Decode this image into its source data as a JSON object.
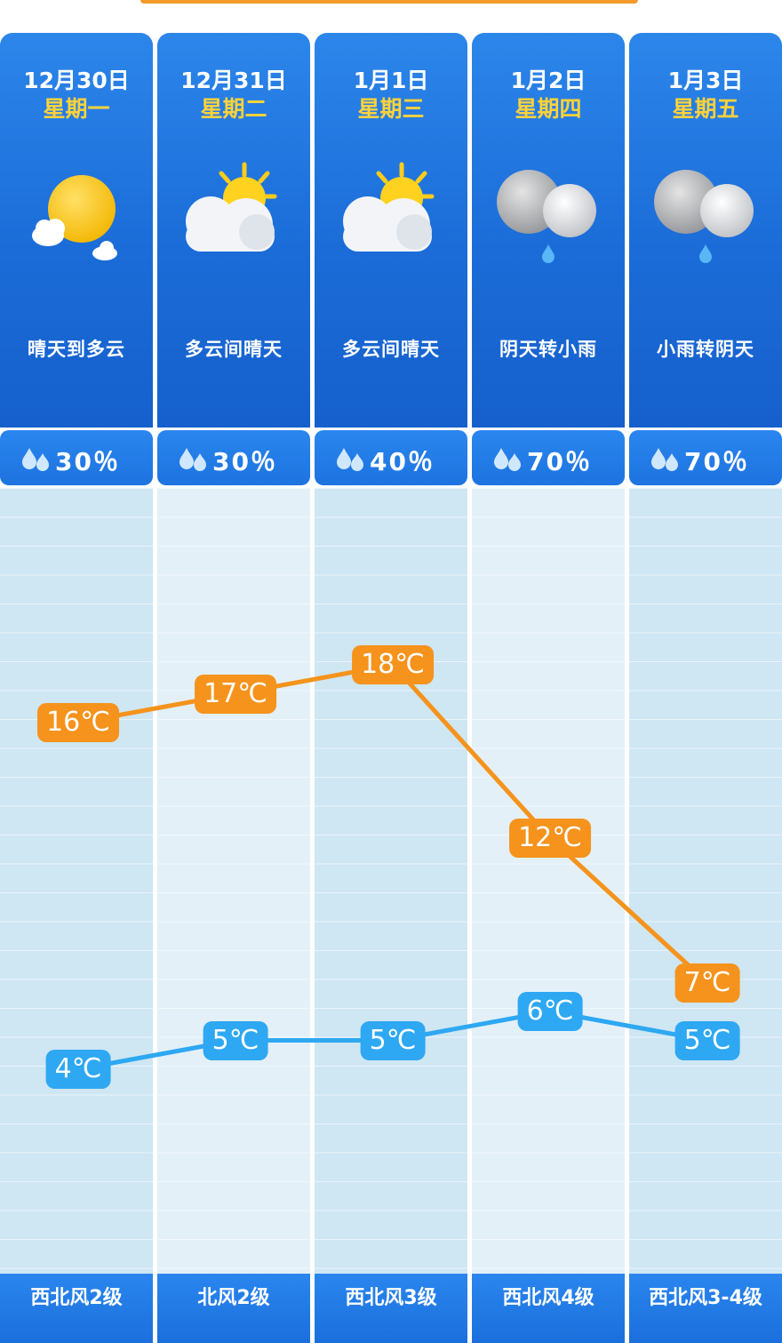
{
  "days": [
    {
      "date": "12月30日",
      "weekday": "星期一",
      "icon": "sun-cloud-icon",
      "desc": "晴天到多云",
      "rain": "30％",
      "wind": "西北风2级"
    },
    {
      "date": "12月31日",
      "weekday": "星期二",
      "icon": "cloud-sun-icon",
      "desc": "多云间晴天",
      "rain": "30％",
      "wind": "北风2级"
    },
    {
      "date": "1月1日",
      "weekday": "星期三",
      "icon": "cloud-sun-icon",
      "desc": "多云间晴天",
      "rain": "40％",
      "wind": "西北风3级"
    },
    {
      "date": "1月2日",
      "weekday": "星期四",
      "icon": "cloud-rain-icon",
      "desc": "阴天转小雨",
      "rain": "70％",
      "wind": "西北风4级"
    },
    {
      "date": "1月3日",
      "weekday": "星期五",
      "icon": "cloud-rain-icon",
      "desc": "小雨转阴天",
      "rain": "70％",
      "wind": "西北风3-4级"
    }
  ],
  "chart_data": {
    "type": "line",
    "categories": [
      "12月30日",
      "12月31日",
      "1月1日",
      "1月2日",
      "1月3日"
    ],
    "series": [
      {
        "key": "high",
        "values": [
          16,
          17,
          18,
          12,
          7
        ],
        "labels": [
          "16℃",
          "17℃",
          "18℃",
          "12℃",
          "7℃"
        ],
        "color": "#f5931c"
      },
      {
        "key": "low",
        "values": [
          4,
          5,
          5,
          6,
          5
        ],
        "labels": [
          "4℃",
          "5℃",
          "5℃",
          "6℃",
          "5℃"
        ],
        "color": "#2ea8f2"
      }
    ]
  },
  "colors": {
    "header_blue": "#1b6cd8",
    "weekday_yellow": "#ffd23a",
    "high_orange": "#f5931c",
    "low_blue": "#2ea8f2"
  }
}
